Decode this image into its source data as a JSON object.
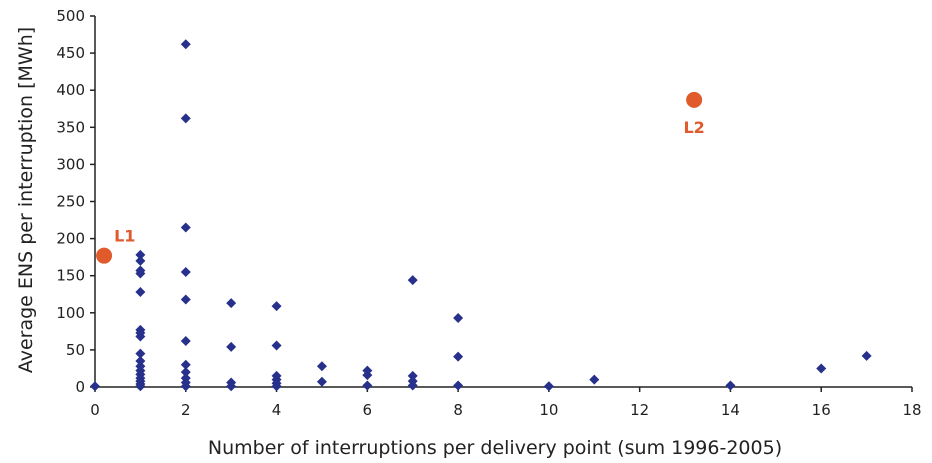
{
  "chart_data": {
    "type": "scatter",
    "xlabel": "Number of interruptions per delivery point (sum 1996-2005)",
    "ylabel": "Average  ENS per interruption [MWh]",
    "xlim": [
      0,
      18
    ],
    "ylim": [
      0,
      500
    ],
    "xticks": [
      "0",
      "2",
      "4",
      "6",
      "8",
      "10",
      "12",
      "14",
      "16",
      "18"
    ],
    "yticks": [
      "0",
      "50",
      "100",
      "150",
      "200",
      "250",
      "300",
      "350",
      "400",
      "450",
      "500"
    ],
    "grid": false,
    "series": [
      {
        "marker": "diamond",
        "color": "#27318b",
        "points": [
          [
            0,
            1
          ],
          [
            1,
            178
          ],
          [
            1,
            170
          ],
          [
            1,
            157
          ],
          [
            1,
            153
          ],
          [
            1,
            128
          ],
          [
            1,
            77
          ],
          [
            1,
            73
          ],
          [
            1,
            68
          ],
          [
            1,
            45
          ],
          [
            1,
            35
          ],
          [
            1,
            28
          ],
          [
            1,
            22
          ],
          [
            1,
            17
          ],
          [
            1,
            12
          ],
          [
            1,
            8
          ],
          [
            1,
            4
          ],
          [
            1,
            1
          ],
          [
            2,
            462
          ],
          [
            2,
            362
          ],
          [
            2,
            215
          ],
          [
            2,
            155
          ],
          [
            2,
            118
          ],
          [
            2,
            62
          ],
          [
            2,
            30
          ],
          [
            2,
            20
          ],
          [
            2,
            12
          ],
          [
            2,
            6
          ],
          [
            2,
            1
          ],
          [
            3,
            113
          ],
          [
            3,
            54
          ],
          [
            3,
            6
          ],
          [
            3,
            1
          ],
          [
            4,
            109
          ],
          [
            4,
            56
          ],
          [
            4,
            15
          ],
          [
            4,
            10
          ],
          [
            4,
            5
          ],
          [
            4,
            1
          ],
          [
            5,
            28
          ],
          [
            5,
            7
          ],
          [
            6,
            22
          ],
          [
            6,
            16
          ],
          [
            6,
            2
          ],
          [
            7,
            144
          ],
          [
            7,
            15
          ],
          [
            7,
            8
          ],
          [
            7,
            2
          ],
          [
            8,
            93
          ],
          [
            8,
            41
          ],
          [
            8,
            2
          ],
          [
            10,
            1
          ],
          [
            11,
            10
          ],
          [
            14,
            2
          ],
          [
            16,
            25
          ],
          [
            17,
            42
          ]
        ]
      },
      {
        "marker": "circle",
        "color": "#e05a2b",
        "points": [
          {
            "x": 0.2,
            "y": 177,
            "label": "L1"
          },
          {
            "x": 13.2,
            "y": 387,
            "label": "L2"
          }
        ]
      }
    ]
  }
}
